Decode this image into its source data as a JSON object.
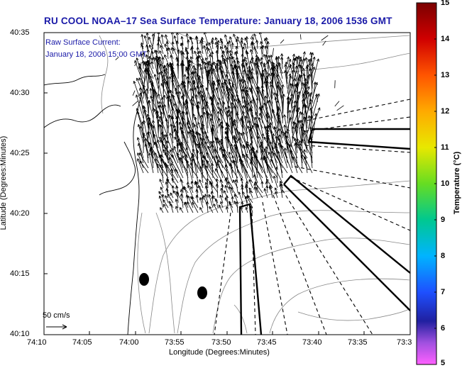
{
  "title": "RU COOL  NOAA–17  Sea Surface Temperature:  January 18, 2006 1536 GMT",
  "annotation": {
    "line1": "Raw Surface Current:",
    "line2": "January 18, 2006 15:00 GMT"
  },
  "scale_arrow_label": "50 cm/s",
  "x_axis": {
    "label": "Longitude (Degrees:Minutes)",
    "ticks": [
      "74:10",
      "74:05",
      "74:00",
      "73:55",
      "73:50",
      "73:45",
      "73:40",
      "73:35",
      "73:3"
    ]
  },
  "y_axis": {
    "label": "Latitude (Degrees:Minutes)",
    "ticks": [
      "40:35",
      "40:30",
      "40:25",
      "40:20",
      "40:15",
      "40:10"
    ]
  },
  "colorbar": {
    "label": "Temperature (°C)",
    "ticks": [
      "15",
      "14",
      "13",
      "12",
      "11",
      "10",
      "9",
      "8",
      "7",
      "6",
      "5"
    ],
    "colors": [
      "#8b0000",
      "#ff0000",
      "#ff8c00",
      "#ffd700",
      "#c8ff00",
      "#32cd32",
      "#00c8a0",
      "#00bfff",
      "#1e64ff",
      "#0000cd",
      "#7b3fbf",
      "#ff40ff"
    ]
  },
  "map": {
    "current_vectors": "raw surface current field",
    "markers": [
      "station-dot",
      "station-dot"
    ]
  }
}
